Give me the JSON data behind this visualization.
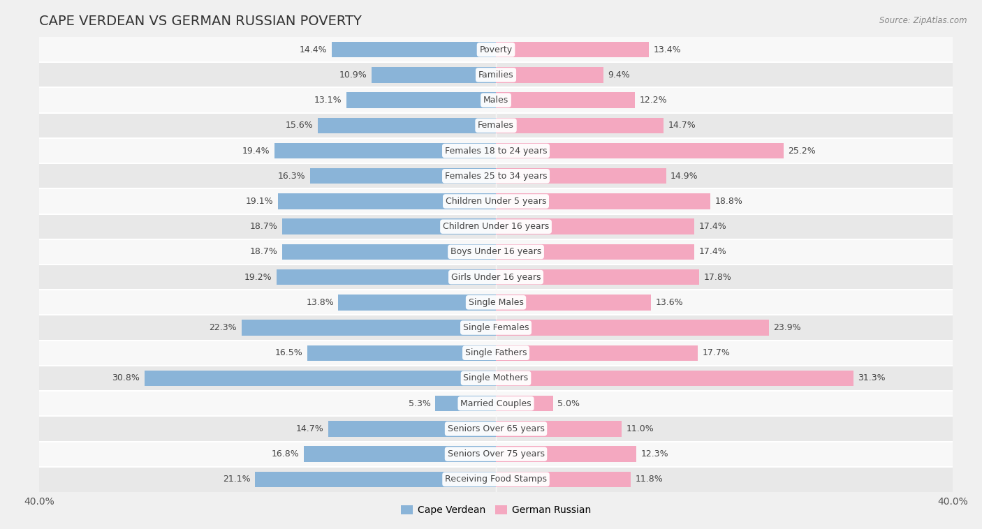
{
  "title": "CAPE VERDEAN VS GERMAN RUSSIAN POVERTY",
  "source": "Source: ZipAtlas.com",
  "categories": [
    "Poverty",
    "Families",
    "Males",
    "Females",
    "Females 18 to 24 years",
    "Females 25 to 34 years",
    "Children Under 5 years",
    "Children Under 16 years",
    "Boys Under 16 years",
    "Girls Under 16 years",
    "Single Males",
    "Single Females",
    "Single Fathers",
    "Single Mothers",
    "Married Couples",
    "Seniors Over 65 years",
    "Seniors Over 75 years",
    "Receiving Food Stamps"
  ],
  "cape_verdean": [
    14.4,
    10.9,
    13.1,
    15.6,
    19.4,
    16.3,
    19.1,
    18.7,
    18.7,
    19.2,
    13.8,
    22.3,
    16.5,
    30.8,
    5.3,
    14.7,
    16.8,
    21.1
  ],
  "german_russian": [
    13.4,
    9.4,
    12.2,
    14.7,
    25.2,
    14.9,
    18.8,
    17.4,
    17.4,
    17.8,
    13.6,
    23.9,
    17.7,
    31.3,
    5.0,
    11.0,
    12.3,
    11.8
  ],
  "cape_verdean_color": "#8ab4d8",
  "german_russian_color": "#f4a8c0",
  "background_color": "#f0f0f0",
  "row_color_light": "#f8f8f8",
  "row_color_dark": "#e8e8e8",
  "bar_height": 0.62,
  "xlim": 40.0,
  "legend_label_left": "Cape Verdean",
  "legend_label_right": "German Russian",
  "title_fontsize": 14,
  "axis_label_fontsize": 10,
  "value_fontsize": 9,
  "category_fontsize": 9,
  "source_fontsize": 8.5
}
